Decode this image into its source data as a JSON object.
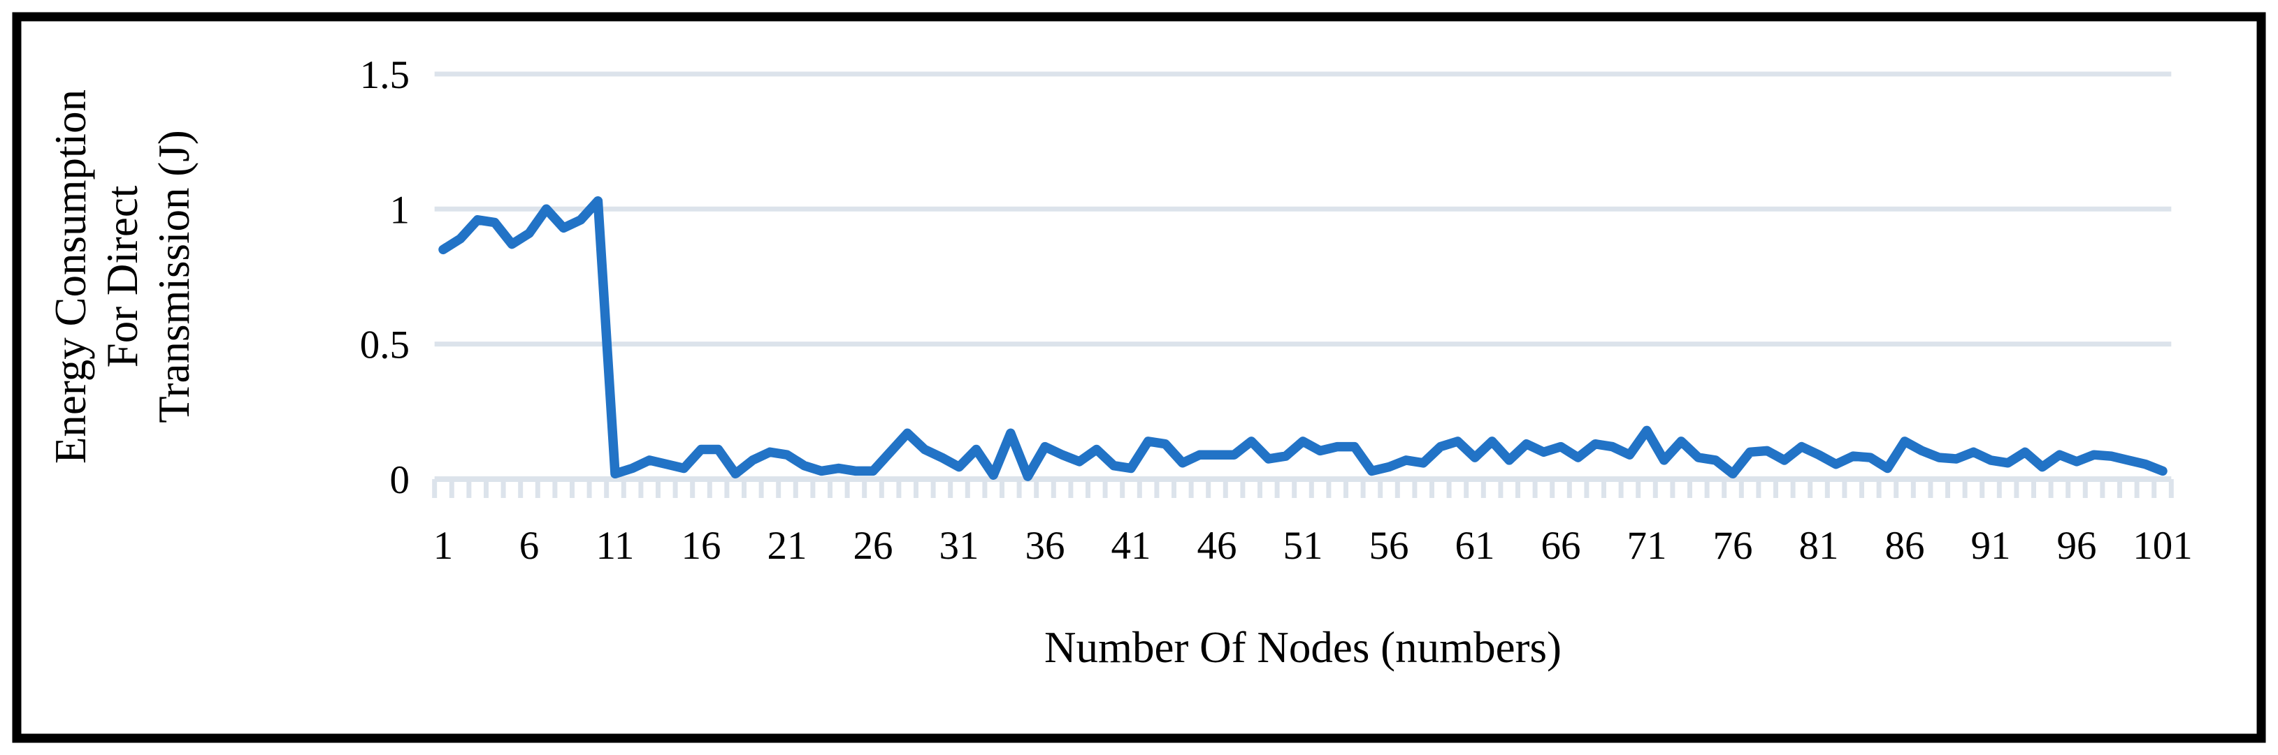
{
  "figure": {
    "border_color": "#000000",
    "background_color": "#ffffff"
  },
  "chart_data": {
    "type": "line",
    "title": "",
    "xlabel": "Number Of Nodes (numbers)",
    "ylabel": "Energy Consumption For Direct Transmission (J)",
    "ylabel_lines": [
      "Energy Consumption",
      "For Direct",
      "Transmission (J)"
    ],
    "series_name": "Energy Consumption For Direct Transmission",
    "x": [
      1,
      2,
      3,
      4,
      5,
      6,
      7,
      8,
      9,
      10,
      11,
      12,
      13,
      14,
      15,
      16,
      17,
      18,
      19,
      20,
      21,
      22,
      23,
      24,
      25,
      26,
      27,
      28,
      29,
      30,
      31,
      32,
      33,
      34,
      35,
      36,
      37,
      38,
      39,
      40,
      41,
      42,
      43,
      44,
      45,
      46,
      47,
      48,
      49,
      50,
      51,
      52,
      53,
      54,
      55,
      56,
      57,
      58,
      59,
      60,
      61,
      62,
      63,
      64,
      65,
      66,
      67,
      68,
      69,
      70,
      71,
      72,
      73,
      74,
      75,
      76,
      77,
      78,
      79,
      80,
      81,
      82,
      83,
      84,
      85,
      86,
      87,
      88,
      89,
      90,
      91,
      92,
      93,
      94,
      95,
      96,
      97,
      98,
      99,
      100,
      101
    ],
    "values": [
      0.85,
      0.89,
      0.96,
      0.95,
      0.87,
      0.91,
      1.0,
      0.93,
      0.96,
      1.03,
      0.02,
      0.04,
      0.07,
      0.055,
      0.04,
      0.11,
      0.11,
      0.02,
      0.07,
      0.1,
      0.09,
      0.05,
      0.03,
      0.04,
      0.03,
      0.03,
      0.1,
      0.17,
      0.11,
      0.08,
      0.045,
      0.11,
      0.015,
      0.17,
      0.01,
      0.12,
      0.09,
      0.065,
      0.11,
      0.05,
      0.04,
      0.14,
      0.13,
      0.06,
      0.09,
      0.09,
      0.09,
      0.14,
      0.075,
      0.085,
      0.14,
      0.105,
      0.12,
      0.12,
      0.03,
      0.045,
      0.07,
      0.06,
      0.12,
      0.14,
      0.08,
      0.14,
      0.07,
      0.13,
      0.1,
      0.12,
      0.08,
      0.13,
      0.12,
      0.09,
      0.18,
      0.07,
      0.14,
      0.08,
      0.07,
      0.02,
      0.1,
      0.105,
      0.07,
      0.12,
      0.09,
      0.055,
      0.085,
      0.08,
      0.04,
      0.14,
      0.105,
      0.08,
      0.075,
      0.1,
      0.07,
      0.06,
      0.1,
      0.045,
      0.09,
      0.065,
      0.09,
      0.085,
      0.07,
      0.055,
      0.03
    ],
    "x_tick_labels": [
      "1",
      "6",
      "11",
      "16",
      "21",
      "26",
      "31",
      "36",
      "41",
      "46",
      "51",
      "56",
      "61",
      "66",
      "71",
      "76",
      "81",
      "86",
      "91",
      "96",
      "101"
    ],
    "x_tick_values": [
      1,
      6,
      11,
      16,
      21,
      26,
      31,
      36,
      41,
      46,
      51,
      56,
      61,
      66,
      71,
      76,
      81,
      86,
      91,
      96,
      101
    ],
    "y_tick_labels": [
      "0",
      "0.5",
      "1",
      "1.5"
    ],
    "y_tick_values": [
      0,
      0.5,
      1,
      1.5
    ],
    "ylim": [
      0,
      1.5
    ],
    "xlim": [
      1,
      101
    ],
    "grid": "horizontal",
    "legend": "none",
    "line_color": "#2273C6",
    "gridline_color": "#DCE3EB",
    "tick_color": "#DCE3EB"
  }
}
